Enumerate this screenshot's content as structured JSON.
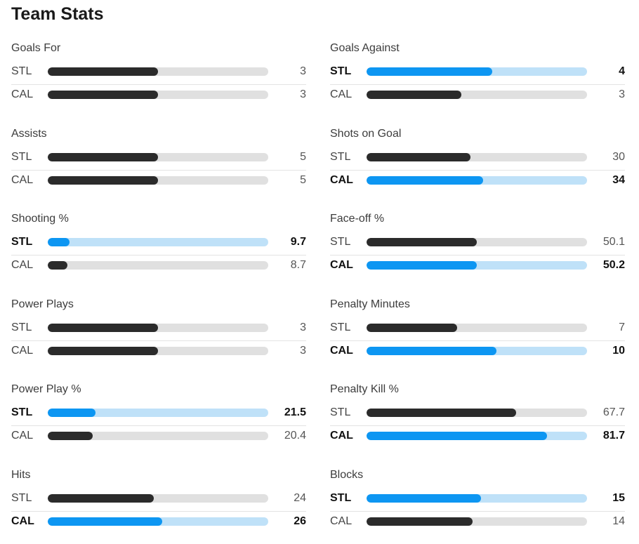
{
  "header": {
    "title": "Team Stats"
  },
  "colors": {
    "leader_fill": "#0d96f2",
    "leader_track": "#bfe1f8",
    "other_fill": "#2b2b2b",
    "other_track": "#e0e0e0"
  },
  "stats": [
    {
      "title": "Goals For",
      "rows": [
        {
          "team": "STL",
          "value": "3",
          "fill": 0.5,
          "lead": false
        },
        {
          "team": "CAL",
          "value": "3",
          "fill": 0.5,
          "lead": false
        }
      ]
    },
    {
      "title": "Goals Against",
      "rows": [
        {
          "team": "STL",
          "value": "4",
          "fill": 0.57,
          "lead": true
        },
        {
          "team": "CAL",
          "value": "3",
          "fill": 0.43,
          "lead": false
        }
      ]
    },
    {
      "title": "Assists",
      "rows": [
        {
          "team": "STL",
          "value": "5",
          "fill": 0.5,
          "lead": false
        },
        {
          "team": "CAL",
          "value": "5",
          "fill": 0.5,
          "lead": false
        }
      ]
    },
    {
      "title": "Shots on Goal",
      "rows": [
        {
          "team": "STL",
          "value": "30",
          "fill": 0.47,
          "lead": false
        },
        {
          "team": "CAL",
          "value": "34",
          "fill": 0.53,
          "lead": true
        }
      ]
    },
    {
      "title": "Shooting %",
      "rows": [
        {
          "team": "STL",
          "value": "9.7",
          "fill": 0.1,
          "lead": true
        },
        {
          "team": "CAL",
          "value": "8.7",
          "fill": 0.09,
          "lead": false
        }
      ]
    },
    {
      "title": "Face-off %",
      "rows": [
        {
          "team": "STL",
          "value": "50.1",
          "fill": 0.5,
          "lead": false
        },
        {
          "team": "CAL",
          "value": "50.2",
          "fill": 0.5,
          "lead": true
        }
      ]
    },
    {
      "title": "Power Plays",
      "rows": [
        {
          "team": "STL",
          "value": "3",
          "fill": 0.5,
          "lead": false
        },
        {
          "team": "CAL",
          "value": "3",
          "fill": 0.5,
          "lead": false
        }
      ]
    },
    {
      "title": "Penalty Minutes",
      "rows": [
        {
          "team": "STL",
          "value": "7",
          "fill": 0.41,
          "lead": false
        },
        {
          "team": "CAL",
          "value": "10",
          "fill": 0.59,
          "lead": true
        }
      ]
    },
    {
      "title": "Power Play %",
      "rows": [
        {
          "team": "STL",
          "value": "21.5",
          "fill": 0.215,
          "lead": true
        },
        {
          "team": "CAL",
          "value": "20.4",
          "fill": 0.204,
          "lead": false
        }
      ]
    },
    {
      "title": "Penalty Kill %",
      "rows": [
        {
          "team": "STL",
          "value": "67.7",
          "fill": 0.677,
          "lead": false
        },
        {
          "team": "CAL",
          "value": "81.7",
          "fill": 0.817,
          "lead": true
        }
      ]
    },
    {
      "title": "Hits",
      "rows": [
        {
          "team": "STL",
          "value": "24",
          "fill": 0.48,
          "lead": false
        },
        {
          "team": "CAL",
          "value": "26",
          "fill": 0.52,
          "lead": true
        }
      ]
    },
    {
      "title": "Blocks",
      "rows": [
        {
          "team": "STL",
          "value": "15",
          "fill": 0.52,
          "lead": true
        },
        {
          "team": "CAL",
          "value": "14",
          "fill": 0.48,
          "lead": false
        }
      ]
    }
  ]
}
